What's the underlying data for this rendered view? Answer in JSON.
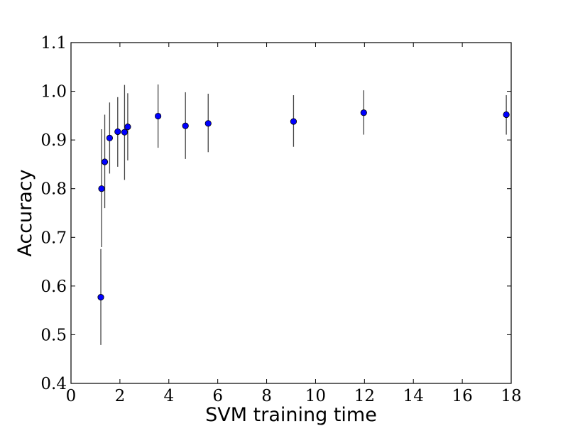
{
  "chart_data": {
    "type": "scatter",
    "title": "",
    "xlabel": "SVM training time",
    "ylabel": "Accuracy",
    "xlim": [
      0,
      18
    ],
    "ylim": [
      0.4,
      1.1
    ],
    "xticks": [
      "0",
      "2",
      "4",
      "6",
      "8",
      "10",
      "12",
      "14",
      "16",
      "18"
    ],
    "yticks": [
      "0.4",
      "0.5",
      "0.6",
      "0.7",
      "0.8",
      "0.9",
      "1.0",
      "1.1"
    ],
    "grid": false,
    "marker_color": "#0000ff",
    "errorbar_color": "#444444",
    "points": [
      {
        "x": 1.22,
        "y": 0.577,
        "lo": 0.479,
        "hi": 0.676
      },
      {
        "x": 1.25,
        "y": 0.8,
        "lo": 0.68,
        "hi": 0.922
      },
      {
        "x": 1.38,
        "y": 0.855,
        "lo": 0.76,
        "hi": 0.952
      },
      {
        "x": 1.58,
        "y": 0.904,
        "lo": 0.831,
        "hi": 0.977
      },
      {
        "x": 1.91,
        "y": 0.917,
        "lo": 0.845,
        "hi": 0.988
      },
      {
        "x": 2.19,
        "y": 0.916,
        "lo": 0.818,
        "hi": 1.013
      },
      {
        "x": 2.32,
        "y": 0.927,
        "lo": 0.858,
        "hi": 0.996
      },
      {
        "x": 3.56,
        "y": 0.949,
        "lo": 0.884,
        "hi": 1.014
      },
      {
        "x": 4.68,
        "y": 0.929,
        "lo": 0.861,
        "hi": 0.998
      },
      {
        "x": 5.61,
        "y": 0.934,
        "lo": 0.875,
        "hi": 0.995
      },
      {
        "x": 9.1,
        "y": 0.938,
        "lo": 0.886,
        "hi": 0.992
      },
      {
        "x": 11.97,
        "y": 0.956,
        "lo": 0.911,
        "hi": 1.002
      },
      {
        "x": 17.8,
        "y": 0.952,
        "lo": 0.911,
        "hi": 0.992
      }
    ]
  }
}
